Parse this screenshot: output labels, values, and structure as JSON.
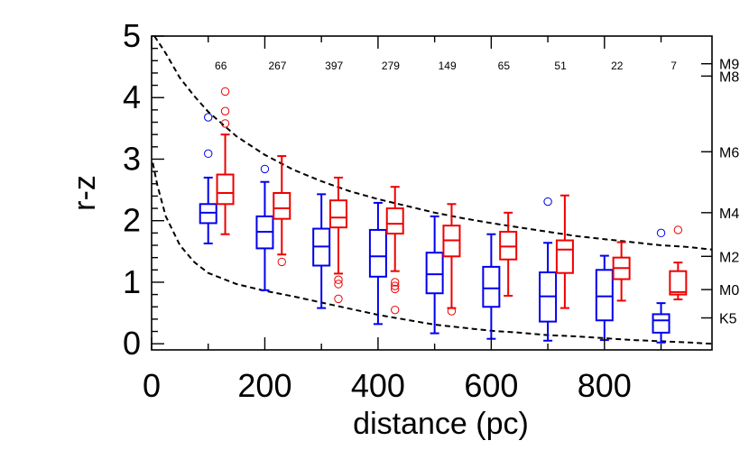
{
  "chart_data": {
    "type": "box",
    "title": "",
    "xlabel": "distance (pc)",
    "ylabel": "r-z",
    "xlim": [
      0,
      990
    ],
    "ylim": [
      -0.1,
      5.0
    ],
    "x_ticks": [
      0,
      200,
      400,
      600,
      800
    ],
    "y_ticks": [
      0,
      1,
      2,
      3,
      4,
      5
    ],
    "right_axis_labels": [
      {
        "label": "M9",
        "value": 4.55
      },
      {
        "label": "M8",
        "value": 4.35
      },
      {
        "label": "M6",
        "value": 3.12
      },
      {
        "label": "M4",
        "value": 2.13
      },
      {
        "label": "M2",
        "value": 1.42
      },
      {
        "label": "M0",
        "value": 0.88
      },
      {
        "label": "K5",
        "value": 0.42
      }
    ],
    "counts": [
      {
        "x": 100,
        "label": "66"
      },
      {
        "x": 200,
        "label": "267"
      },
      {
        "x": 300,
        "label": "397"
      },
      {
        "x": 400,
        "label": "279"
      },
      {
        "x": 500,
        "label": "149"
      },
      {
        "x": 600,
        "label": "65"
      },
      {
        "x": 700,
        "label": "51"
      },
      {
        "x": 800,
        "label": "22"
      },
      {
        "x": 900,
        "label": "7"
      }
    ],
    "series": [
      {
        "color": "#0000ee",
        "boxes": [
          {
            "x": 100,
            "wlo": 1.63,
            "q1": 1.96,
            "med": 2.13,
            "q3": 2.27,
            "whi": 2.7,
            "outliers": [
              3.09,
              3.68
            ]
          },
          {
            "x": 200,
            "wlo": 0.87,
            "q1": 1.55,
            "med": 1.82,
            "q3": 2.07,
            "whi": 2.63,
            "outliers": [
              2.84
            ]
          },
          {
            "x": 300,
            "wlo": 0.58,
            "q1": 1.27,
            "med": 1.58,
            "q3": 1.87,
            "whi": 2.43,
            "outliers": []
          },
          {
            "x": 400,
            "wlo": 0.32,
            "q1": 1.09,
            "med": 1.42,
            "q3": 1.85,
            "whi": 2.29,
            "outliers": []
          },
          {
            "x": 500,
            "wlo": 0.17,
            "q1": 0.82,
            "med": 1.13,
            "q3": 1.48,
            "whi": 2.07,
            "outliers": []
          },
          {
            "x": 600,
            "wlo": 0.08,
            "q1": 0.6,
            "med": 0.9,
            "q3": 1.25,
            "whi": 1.78,
            "outliers": []
          },
          {
            "x": 700,
            "wlo": 0.05,
            "q1": 0.36,
            "med": 0.77,
            "q3": 1.16,
            "whi": 1.64,
            "outliers": [
              2.31
            ]
          },
          {
            "x": 800,
            "wlo": 0.06,
            "q1": 0.38,
            "med": 0.77,
            "q3": 1.2,
            "whi": 1.43,
            "outliers": []
          },
          {
            "x": 900,
            "wlo": 0.02,
            "q1": 0.18,
            "med": 0.38,
            "q3": 0.48,
            "whi": 0.66,
            "outliers": [
              1.8
            ]
          }
        ]
      },
      {
        "color": "#ee0000",
        "boxes": [
          {
            "x": 130,
            "wlo": 1.78,
            "q1": 2.27,
            "med": 2.45,
            "q3": 2.75,
            "whi": 3.4,
            "outliers": [
              3.58,
              3.78,
              4.1
            ]
          },
          {
            "x": 230,
            "wlo": 1.45,
            "q1": 2.03,
            "med": 2.2,
            "q3": 2.45,
            "whi": 3.05,
            "outliers": [
              1.33
            ]
          },
          {
            "x": 330,
            "wlo": 1.14,
            "q1": 1.89,
            "med": 2.05,
            "q3": 2.33,
            "whi": 2.7,
            "outliers": [
              0.73,
              0.97,
              1.04
            ]
          },
          {
            "x": 430,
            "wlo": 1.18,
            "q1": 1.79,
            "med": 1.95,
            "q3": 2.2,
            "whi": 2.55,
            "outliers": [
              0.55,
              0.89,
              0.94,
              1.0
            ]
          },
          {
            "x": 530,
            "wlo": 0.58,
            "q1": 1.42,
            "med": 1.68,
            "q3": 1.92,
            "whi": 2.27,
            "outliers": [
              0.53
            ]
          },
          {
            "x": 630,
            "wlo": 0.78,
            "q1": 1.37,
            "med": 1.58,
            "q3": 1.82,
            "whi": 2.13,
            "outliers": []
          },
          {
            "x": 730,
            "wlo": 0.58,
            "q1": 1.15,
            "med": 1.53,
            "q3": 1.68,
            "whi": 2.41,
            "outliers": []
          },
          {
            "x": 830,
            "wlo": 0.7,
            "q1": 1.05,
            "med": 1.23,
            "q3": 1.4,
            "whi": 1.65,
            "outliers": []
          },
          {
            "x": 930,
            "wlo": 0.72,
            "q1": 0.8,
            "med": 0.84,
            "q3": 1.18,
            "whi": 1.32,
            "outliers": [
              1.85
            ]
          }
        ]
      }
    ],
    "curves": [
      {
        "style": "dashed",
        "points": [
          [
            5,
            5.0
          ],
          [
            25,
            4.72
          ],
          [
            50,
            4.32
          ],
          [
            75,
            4.03
          ],
          [
            100,
            3.77
          ],
          [
            150,
            3.37
          ],
          [
            200,
            3.07
          ],
          [
            250,
            2.83
          ],
          [
            300,
            2.64
          ],
          [
            350,
            2.48
          ],
          [
            400,
            2.35
          ],
          [
            450,
            2.24
          ],
          [
            500,
            2.13
          ],
          [
            550,
            2.04
          ],
          [
            600,
            1.96
          ],
          [
            650,
            1.89
          ],
          [
            700,
            1.82
          ],
          [
            750,
            1.75
          ],
          [
            800,
            1.7
          ],
          [
            850,
            1.65
          ],
          [
            900,
            1.6
          ],
          [
            950,
            1.57
          ],
          [
            990,
            1.53
          ]
        ]
      },
      {
        "style": "dashed",
        "points": [
          [
            2,
            2.94
          ],
          [
            10,
            2.58
          ],
          [
            25,
            2.07
          ],
          [
            50,
            1.6
          ],
          [
            75,
            1.33
          ],
          [
            100,
            1.15
          ],
          [
            150,
            0.97
          ],
          [
            200,
            0.86
          ],
          [
            250,
            0.77
          ],
          [
            300,
            0.67
          ],
          [
            350,
            0.57
          ],
          [
            400,
            0.47
          ],
          [
            450,
            0.39
          ],
          [
            500,
            0.31
          ],
          [
            550,
            0.26
          ],
          [
            600,
            0.21
          ],
          [
            650,
            0.18
          ],
          [
            700,
            0.14
          ],
          [
            750,
            0.12
          ],
          [
            800,
            0.09
          ],
          [
            850,
            0.06
          ],
          [
            900,
            0.04
          ],
          [
            950,
            0.02
          ],
          [
            990,
            0.0
          ]
        ]
      }
    ]
  }
}
